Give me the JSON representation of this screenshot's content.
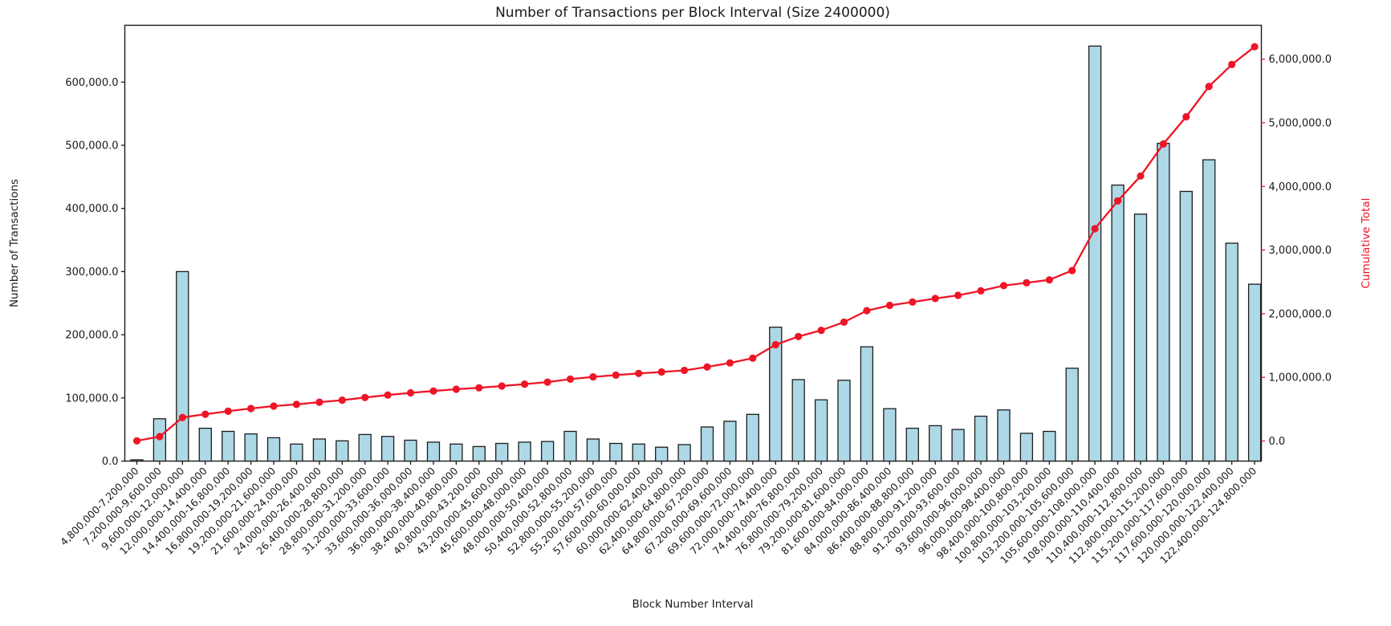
{
  "chart_data": {
    "type": "combo",
    "title": "Number of Transactions per Block Interval (Size 2400000)",
    "xlabel": "Block Number Interval",
    "ylabel_left": "Number of Transactions",
    "ylabel_right": "Cumulative Total",
    "legend_position": "none",
    "grid": false,
    "colors": {
      "bar_fill": "#add8e6",
      "bar_edge": "#1c1c1c",
      "line": "#ee1526",
      "text": "#1a1a1a",
      "spine": "#1a1a1a"
    },
    "categories": [
      "4,800,000-7,200,000",
      "7,200,000-9,600,000",
      "9,600,000-12,000,000",
      "12,000,000-14,400,000",
      "14,400,000-16,800,000",
      "16,800,000-19,200,000",
      "19,200,000-21,600,000",
      "21,600,000-24,000,000",
      "24,000,000-26,400,000",
      "26,400,000-28,800,000",
      "28,800,000-31,200,000",
      "31,200,000-33,600,000",
      "33,600,000-36,000,000",
      "36,000,000-38,400,000",
      "38,400,000-40,800,000",
      "40,800,000-43,200,000",
      "43,200,000-45,600,000",
      "45,600,000-48,000,000",
      "48,000,000-50,400,000",
      "50,400,000-52,800,000",
      "52,800,000-55,200,000",
      "55,200,000-57,600,000",
      "57,600,000-60,000,000",
      "60,000,000-62,400,000",
      "62,400,000-64,800,000",
      "64,800,000-67,200,000",
      "67,200,000-69,600,000",
      "69,600,000-72,000,000",
      "72,000,000-74,400,000",
      "74,400,000-76,800,000",
      "76,800,000-79,200,000",
      "79,200,000-81,600,000",
      "81,600,000-84,000,000",
      "84,000,000-86,400,000",
      "86,400,000-88,800,000",
      "88,800,000-91,200,000",
      "91,200,000-93,600,000",
      "93,600,000-96,000,000",
      "96,000,000-98,400,000",
      "98,400,000-100,800,000",
      "100,800,000-103,200,000",
      "103,200,000-105,600,000",
      "105,600,000-108,000,000",
      "108,000,000-110,400,000",
      "110,400,000-112,800,000",
      "112,800,000-115,200,000",
      "115,200,000-117,600,000",
      "117,600,000-120,000,000",
      "120,000,000-122,400,000",
      "122,400,000-124,800,000"
    ],
    "series": [
      {
        "name": "Number of Transactions",
        "type": "bar",
        "axis": "left",
        "values": [
          2000,
          67000,
          300000,
          52000,
          47000,
          43000,
          37000,
          27000,
          35000,
          32000,
          42000,
          39000,
          33000,
          30000,
          27000,
          23000,
          28000,
          30000,
          31000,
          47000,
          35000,
          28000,
          27000,
          22000,
          26000,
          54000,
          63000,
          74000,
          212000,
          129000,
          97000,
          128000,
          181000,
          83000,
          52000,
          56000,
          50000,
          71000,
          81000,
          44000,
          47000,
          147000,
          657000,
          437000,
          391000,
          503000,
          427000,
          477000,
          345000,
          280000
        ]
      },
      {
        "name": "Cumulative Total",
        "type": "line",
        "axis": "right",
        "marker": "circle",
        "values": [
          2000,
          69000,
          369000,
          421000,
          468000,
          511000,
          548000,
          575000,
          610000,
          642000,
          684000,
          723000,
          756000,
          786000,
          813000,
          836000,
          864000,
          894000,
          925000,
          972000,
          1007000,
          1035000,
          1062000,
          1084000,
          1110000,
          1164000,
          1227000,
          1301000,
          1513000,
          1642000,
          1739000,
          1867000,
          2048000,
          2131000,
          2183000,
          2239000,
          2289000,
          2360000,
          2441000,
          2485000,
          2532000,
          2679000,
          3336000,
          3773000,
          4164000,
          4667000,
          5094000,
          5571000,
          5916000,
          6196000
        ]
      }
    ],
    "y_axis_left": {
      "min": 0,
      "max": 690000,
      "tick_values": [
        0,
        100000,
        200000,
        300000,
        400000,
        500000,
        600000
      ],
      "tick_labels": [
        "0.0",
        "100,000.0",
        "200,000.0",
        "300,000.0",
        "400,000.0",
        "500,000.0",
        "600,000.0"
      ]
    },
    "y_axis_right": {
      "min": 0,
      "max": 6530000,
      "tick_values": [
        0,
        1000000,
        2000000,
        3000000,
        4000000,
        5000000,
        6000000
      ],
      "tick_labels": [
        "0.0",
        "1,000,000.0",
        "2,000,000.0",
        "3,000,000.0",
        "4,000,000.0",
        "5,000,000.0",
        "6,000,000.0"
      ]
    },
    "x_tick_rotation_deg": 45
  }
}
